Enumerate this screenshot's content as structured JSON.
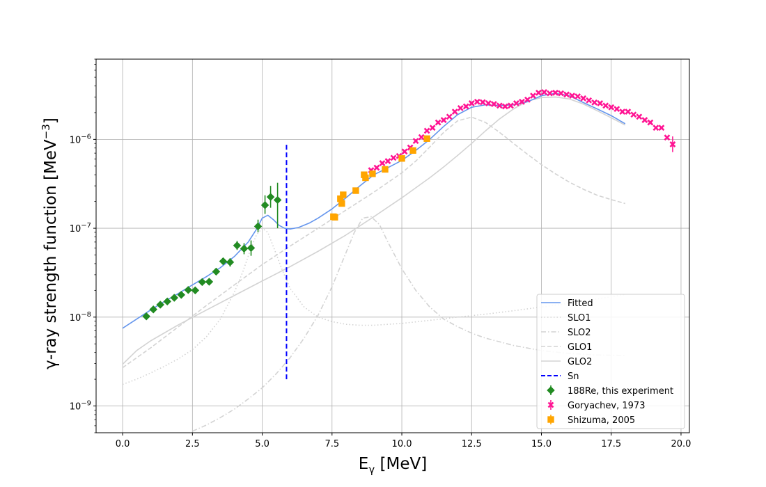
{
  "chart_data": {
    "type": "scatter",
    "xlabel": "E",
    "xlabel_sub": "γ",
    "xlabel_unit": " [MeV]",
    "ylabel": "γ-ray strength function [MeV",
    "ylabel_sup": "−3",
    "ylabel_end": "]",
    "xlim": [
      -0.95,
      20.3
    ],
    "ylim": [
      5e-10,
      8e-06
    ],
    "yscale": "log",
    "grid": true,
    "legend_position": "lower right",
    "x_ticks": [
      0,
      2.5,
      5,
      7.5,
      10,
      12.5,
      15,
      17.5,
      20
    ],
    "x_tick_labels": [
      "0.0",
      "2.5",
      "5.0",
      "7.5",
      "10.0",
      "12.5",
      "15.0",
      "17.5",
      "20.0"
    ],
    "y_ticks": [
      1e-09,
      1e-08,
      1e-07,
      1e-06
    ],
    "y_tick_labels": [
      {
        "base": "10",
        "exp": "−9"
      },
      {
        "base": "10",
        "exp": "−8"
      },
      {
        "base": "10",
        "exp": "−7"
      },
      {
        "base": "10",
        "exp": "−6"
      }
    ],
    "lines": [
      {
        "name": "Fitted",
        "style": "solid",
        "color": "#6495ed",
        "width": 1.6,
        "x": [
          0,
          0.5,
          1,
          1.5,
          2,
          2.5,
          3,
          3.5,
          4,
          4.5,
          4.8,
          5.0,
          5.2,
          5.4,
          5.6,
          5.8,
          6.0,
          6.3,
          6.7,
          7,
          7.5,
          8,
          8.5,
          9,
          9.5,
          10,
          10.5,
          11,
          11.5,
          12,
          12.5,
          13,
          13.5,
          14,
          14.5,
          15,
          15.5,
          16,
          16.5,
          17,
          17.5,
          18
        ],
        "y": [
          7.5e-09,
          9.5e-09,
          1.2e-08,
          1.5e-08,
          1.85e-08,
          2.3e-08,
          2.85e-08,
          3.6e-08,
          4.8e-08,
          7e-08,
          9.8e-08,
          1.3e-07,
          1.4e-07,
          1.25e-07,
          1.08e-07,
          1e-07,
          9.8e-08,
          1.02e-07,
          1.15e-07,
          1.3e-07,
          1.65e-07,
          2.2e-07,
          3e-07,
          4e-07,
          4.8e-07,
          5.8e-07,
          7.5e-07,
          1e-06,
          1.4e-06,
          1.9e-06,
          2.3e-06,
          2.45e-06,
          2.4e-06,
          2.45e-06,
          2.65e-06,
          3.1e-06,
          3.3e-06,
          3.1e-06,
          2.6e-06,
          2.2e-06,
          1.85e-06,
          1.5e-06
        ]
      },
      {
        "name": "SLO1",
        "style": "dotted",
        "color": "#d3d3d3",
        "width": 1.6,
        "x": [
          0,
          0.5,
          1,
          1.5,
          2,
          2.5,
          3,
          3.5,
          4,
          4.3,
          4.6,
          4.8,
          5.0,
          5.2,
          5.4,
          5.7,
          6.0,
          6.5,
          7,
          7.5,
          8,
          8.5,
          9,
          10,
          11,
          12,
          13,
          14,
          15,
          16,
          17,
          18
        ],
        "y": [
          1.75e-09,
          2e-09,
          2.35e-09,
          2.8e-09,
          3.4e-09,
          4.3e-09,
          6e-09,
          9.5e-09,
          1.9e-08,
          3.2e-08,
          6e-08,
          8.5e-08,
          1e-07,
          9e-08,
          6.2e-08,
          3.5e-08,
          2.1e-08,
          1.3e-08,
          1e-08,
          8.9e-09,
          8.3e-09,
          8.1e-09,
          8.1e-09,
          8.5e-09,
          9.2e-09,
          1e-08,
          1.08e-08,
          1.18e-08,
          1.3e-08,
          1.43e-08,
          1.6e-08,
          1.8e-08
        ]
      },
      {
        "name": "SLO2",
        "style": "dashdot",
        "color": "#d3d3d3",
        "width": 1.6,
        "x": [
          2.5,
          3,
          3.5,
          4,
          4.5,
          5,
          5.5,
          6,
          6.5,
          7,
          7.5,
          8,
          8.3,
          8.6,
          8.9,
          9.2,
          9.5,
          10,
          10.5,
          11,
          11.5,
          12,
          12.5,
          13,
          14,
          15,
          16,
          17,
          18
        ],
        "y": [
          5.2e-10,
          6.1e-10,
          7.4e-10,
          9.2e-10,
          1.2e-09,
          1.6e-09,
          2.3e-09,
          3.5e-09,
          5.8e-09,
          1.05e-08,
          2.2e-08,
          5.3e-08,
          9e-08,
          1.3e-07,
          1.35e-07,
          1.1e-07,
          7e-08,
          3.5e-08,
          2e-08,
          1.3e-08,
          9.5e-09,
          7.8e-09,
          6.6e-09,
          5.8e-09,
          4.8e-09,
          4.2e-09,
          3.9e-09,
          3.75e-09,
          3.7e-09
        ]
      },
      {
        "name": "GLO1",
        "style": "dashed",
        "color": "#d3d3d3",
        "width": 1.6,
        "x": [
          0,
          1,
          2,
          3,
          4,
          5,
          6,
          7,
          8,
          9,
          10,
          10.5,
          11,
          11.5,
          12,
          12.5,
          13,
          13.5,
          14,
          14.5,
          15,
          15.5,
          16,
          16.5,
          17,
          17.5,
          18
        ],
        "y": [
          2.7e-09,
          4.5e-09,
          7.8e-09,
          1.35e-08,
          2.3e-08,
          3.9e-08,
          6.3e-08,
          1e-07,
          1.6e-07,
          2.55e-07,
          4.2e-07,
          5.7e-07,
          8.2e-07,
          1.2e-06,
          1.62e-06,
          1.78e-06,
          1.55e-06,
          1.2e-06,
          9e-07,
          6.8e-07,
          5.2e-07,
          4.1e-07,
          3.3e-07,
          2.75e-07,
          2.35e-07,
          2.1e-07,
          1.9e-07
        ]
      },
      {
        "name": "GLO2",
        "style": "solid",
        "color": "#d3d3d3",
        "width": 1.6,
        "x": [
          0,
          0.5,
          1,
          2,
          3,
          4,
          5,
          6,
          7,
          8,
          9,
          10,
          11,
          11.5,
          12,
          12.5,
          13,
          13.5,
          14,
          14.5,
          15,
          15.5,
          16,
          16.5,
          17,
          17.5,
          18
        ],
        "y": [
          2.95e-09,
          4.2e-09,
          5.4e-09,
          8.2e-09,
          1.2e-08,
          1.75e-08,
          2.55e-08,
          3.7e-08,
          5.5e-08,
          8.4e-08,
          1.35e-07,
          2.2e-07,
          3.7e-07,
          4.9e-07,
          6.6e-07,
          9e-07,
          1.25e-06,
          1.7e-06,
          2.2e-06,
          2.7e-06,
          2.95e-06,
          3e-06,
          2.85e-06,
          2.5e-06,
          2.1e-06,
          1.75e-06,
          1.45e-06
        ]
      },
      {
        "name": "Sn",
        "style": "dashed",
        "color": "#0000ff",
        "width": 2,
        "x": [
          5.87,
          5.87
        ],
        "y": [
          2e-09,
          9e-07
        ]
      }
    ],
    "series": [
      {
        "name": "188Re, this experiment",
        "marker": "diamond",
        "color": "#228b22",
        "points": [
          {
            "x": 0.85,
            "y": 1.02e-08,
            "ylo": 1.02e-08,
            "yhi": 1.02e-08
          },
          {
            "x": 1.1,
            "y": 1.22e-08,
            "ylo": 1.22e-08,
            "yhi": 1.22e-08
          },
          {
            "x": 1.35,
            "y": 1.38e-08,
            "ylo": 1.38e-08,
            "yhi": 1.38e-08
          },
          {
            "x": 1.6,
            "y": 1.5e-08,
            "ylo": 1.5e-08,
            "yhi": 1.5e-08
          },
          {
            "x": 1.85,
            "y": 1.65e-08,
            "ylo": 1.65e-08,
            "yhi": 1.65e-08
          },
          {
            "x": 2.1,
            "y": 1.78e-08,
            "ylo": 1.78e-08,
            "yhi": 1.78e-08
          },
          {
            "x": 2.35,
            "y": 2.02e-08,
            "ylo": 2.02e-08,
            "yhi": 2.02e-08
          },
          {
            "x": 2.6,
            "y": 2e-08,
            "ylo": 2e-08,
            "yhi": 2e-08
          },
          {
            "x": 2.85,
            "y": 2.48e-08,
            "ylo": 2.48e-08,
            "yhi": 2.48e-08
          },
          {
            "x": 3.1,
            "y": 2.5e-08,
            "ylo": 2.5e-08,
            "yhi": 2.5e-08
          },
          {
            "x": 3.35,
            "y": 3.25e-08,
            "ylo": 3.25e-08,
            "yhi": 3.25e-08
          },
          {
            "x": 3.6,
            "y": 4.25e-08,
            "ylo": 4.25e-08,
            "yhi": 4.25e-08
          },
          {
            "x": 3.85,
            "y": 4.15e-08,
            "ylo": 3.7e-08,
            "yhi": 4.6e-08
          },
          {
            "x": 4.1,
            "y": 6.4e-08,
            "ylo": 5.7e-08,
            "yhi": 7.2e-08
          },
          {
            "x": 4.35,
            "y": 5.9e-08,
            "ylo": 5.1e-08,
            "yhi": 6.8e-08
          },
          {
            "x": 4.6,
            "y": 6e-08,
            "ylo": 4.9e-08,
            "yhi": 7.3e-08
          },
          {
            "x": 4.85,
            "y": 1.05e-07,
            "ylo": 9e-08,
            "yhi": 1.25e-07
          },
          {
            "x": 5.1,
            "y": 1.82e-07,
            "ylo": 1.45e-07,
            "yhi": 2.35e-07
          },
          {
            "x": 5.3,
            "y": 2.25e-07,
            "ylo": 1.7e-07,
            "yhi": 3e-07
          },
          {
            "x": 5.55,
            "y": 2.08e-07,
            "ylo": 1e-07,
            "yhi": 3.25e-07
          }
        ]
      },
      {
        "name": "Goryachev, 1973",
        "marker": "x",
        "color": "#ff1493",
        "points": [
          {
            "x": 8.9,
            "y": 4.5e-07
          },
          {
            "x": 9.1,
            "y": 4.8e-07
          },
          {
            "x": 9.3,
            "y": 5.4e-07
          },
          {
            "x": 9.5,
            "y": 5.7e-07
          },
          {
            "x": 9.7,
            "y": 6.2e-07
          },
          {
            "x": 9.9,
            "y": 6.5e-07
          },
          {
            "x": 10.1,
            "y": 7.3e-07
          },
          {
            "x": 10.3,
            "y": 8.1e-07
          },
          {
            "x": 10.5,
            "y": 9.6e-07
          },
          {
            "x": 10.7,
            "y": 1.06e-06
          },
          {
            "x": 10.9,
            "y": 1.25e-06
          },
          {
            "x": 11.1,
            "y": 1.35e-06
          },
          {
            "x": 11.3,
            "y": 1.55e-06
          },
          {
            "x": 11.5,
            "y": 1.65e-06
          },
          {
            "x": 11.7,
            "y": 1.8e-06
          },
          {
            "x": 11.9,
            "y": 2.05e-06
          },
          {
            "x": 12.1,
            "y": 2.25e-06
          },
          {
            "x": 12.3,
            "y": 2.35e-06
          },
          {
            "x": 12.5,
            "y": 2.55e-06
          },
          {
            "x": 12.7,
            "y": 2.65e-06
          },
          {
            "x": 12.9,
            "y": 2.62e-06
          },
          {
            "x": 13.1,
            "y": 2.55e-06
          },
          {
            "x": 13.3,
            "y": 2.5e-06
          },
          {
            "x": 13.5,
            "y": 2.4e-06
          },
          {
            "x": 13.7,
            "y": 2.35e-06
          },
          {
            "x": 13.9,
            "y": 2.4e-06
          },
          {
            "x": 14.1,
            "y": 2.55e-06
          },
          {
            "x": 14.3,
            "y": 2.65e-06
          },
          {
            "x": 14.5,
            "y": 2.8e-06
          },
          {
            "x": 14.7,
            "y": 3.1e-06
          },
          {
            "x": 14.9,
            "y": 3.35e-06
          },
          {
            "x": 15.1,
            "y": 3.4e-06
          },
          {
            "x": 15.3,
            "y": 3.3e-06
          },
          {
            "x": 15.5,
            "y": 3.35e-06
          },
          {
            "x": 15.7,
            "y": 3.3e-06
          },
          {
            "x": 15.9,
            "y": 3.2e-06
          },
          {
            "x": 16.1,
            "y": 3.1e-06
          },
          {
            "x": 16.3,
            "y": 3.05e-06
          },
          {
            "x": 16.5,
            "y": 2.9e-06
          },
          {
            "x": 16.7,
            "y": 2.75e-06
          },
          {
            "x": 16.9,
            "y": 2.6e-06
          },
          {
            "x": 17.1,
            "y": 2.55e-06
          },
          {
            "x": 17.3,
            "y": 2.4e-06
          },
          {
            "x": 17.5,
            "y": 2.3e-06
          },
          {
            "x": 17.7,
            "y": 2.2e-06
          },
          {
            "x": 17.9,
            "y": 2.05e-06
          },
          {
            "x": 18.1,
            "y": 2.05e-06
          },
          {
            "x": 18.3,
            "y": 1.9e-06
          },
          {
            "x": 18.5,
            "y": 1.8e-06
          },
          {
            "x": 18.7,
            "y": 1.65e-06
          },
          {
            "x": 18.9,
            "y": 1.55e-06
          },
          {
            "x": 19.1,
            "y": 1.35e-06
          },
          {
            "x": 19.3,
            "y": 1.35e-06
          },
          {
            "x": 19.5,
            "y": 1.05e-06
          },
          {
            "x": 19.7,
            "y": 8.8e-07,
            "ylo": 7.2e-07,
            "yhi": 1.08e-06
          }
        ]
      },
      {
        "name": "Shizuma, 2005",
        "marker": "square",
        "color": "#ffa500",
        "points": [
          {
            "x": 7.55,
            "y": 1.35e-07
          },
          {
            "x": 7.6,
            "y": 1.33e-07
          },
          {
            "x": 7.8,
            "y": 2.15e-07
          },
          {
            "x": 7.85,
            "y": 1.9e-07
          },
          {
            "x": 7.9,
            "y": 2.38e-07
          },
          {
            "x": 8.35,
            "y": 2.65e-07
          },
          {
            "x": 8.65,
            "y": 4e-07
          },
          {
            "x": 8.7,
            "y": 3.7e-07
          },
          {
            "x": 8.95,
            "y": 4.1e-07
          },
          {
            "x": 9.4,
            "y": 4.6e-07
          },
          {
            "x": 10.0,
            "y": 6.1e-07
          },
          {
            "x": 10.4,
            "y": 7.5e-07
          },
          {
            "x": 10.9,
            "y": 1.02e-06
          }
        ]
      }
    ],
    "legend": [
      {
        "label": "Fitted",
        "kind": "line",
        "ref": 0
      },
      {
        "label": "SLO1",
        "kind": "line",
        "ref": 1
      },
      {
        "label": "SLO2",
        "kind": "line",
        "ref": 2
      },
      {
        "label": "GLO1",
        "kind": "line",
        "ref": 3
      },
      {
        "label": "GLO2",
        "kind": "line",
        "ref": 4
      },
      {
        "label": "Sn",
        "kind": "line",
        "ref": 5
      },
      {
        "label": "188Re, this experiment",
        "kind": "marker",
        "ref": 0
      },
      {
        "label": "Goryachev, 1973",
        "kind": "marker",
        "ref": 1
      },
      {
        "label": "Shizuma, 2005",
        "kind": "marker",
        "ref": 2
      }
    ]
  }
}
